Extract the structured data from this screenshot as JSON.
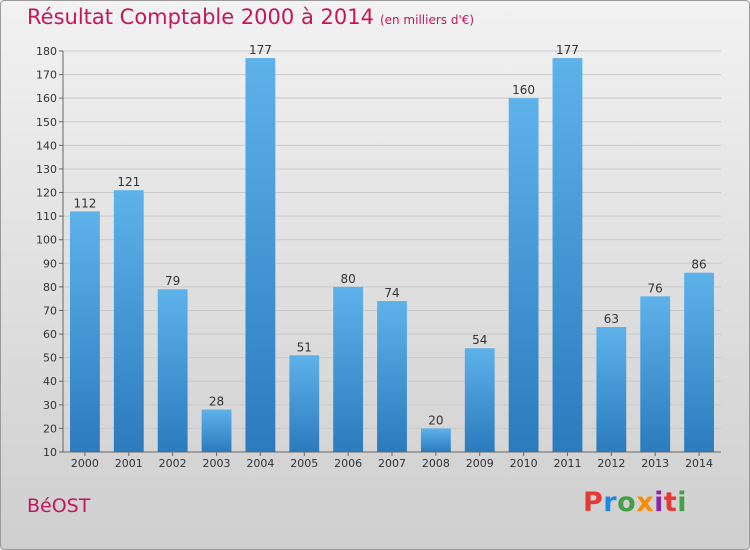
{
  "title": "Résultat Comptable 2000 à 2014",
  "subtitle": "(en milliers d'€)",
  "commune": "BéOST",
  "logo": {
    "text": "Proxiti",
    "letters": [
      {
        "char": "P",
        "color": "#e53935"
      },
      {
        "char": "r",
        "color": "#1e88e5"
      },
      {
        "char": "o",
        "color": "#43a047"
      },
      {
        "char": "x",
        "color": "#fb8c00"
      },
      {
        "char": "i",
        "color": "#8e24aa"
      },
      {
        "char": "t",
        "color": "#e53935"
      },
      {
        "char": "i",
        "color": "#43a047"
      }
    ]
  },
  "chart_data": {
    "type": "bar",
    "title": "Résultat Comptable 2000 à 2014",
    "xlabel": "",
    "ylabel": "",
    "categories": [
      "2000",
      "2001",
      "2002",
      "2003",
      "2004",
      "2005",
      "2006",
      "2007",
      "2008",
      "2009",
      "2010",
      "2011",
      "2012",
      "2013",
      "2014"
    ],
    "values": [
      112,
      121,
      79,
      28,
      177,
      51,
      80,
      74,
      20,
      54,
      160,
      177,
      63,
      76,
      86
    ],
    "ylim": [
      10,
      180
    ],
    "yticks": [
      10,
      20,
      30,
      40,
      50,
      60,
      70,
      80,
      90,
      100,
      110,
      120,
      130,
      140,
      150,
      160,
      170,
      180
    ],
    "grid": true,
    "bar_color_top": "#5eb2ea",
    "bar_color_bottom": "#2b7bbd"
  }
}
